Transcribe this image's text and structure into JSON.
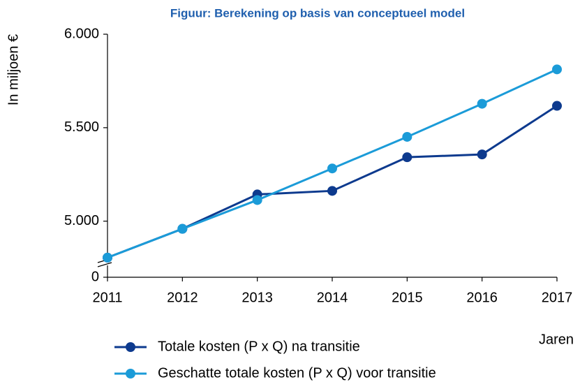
{
  "chart_data": {
    "type": "line",
    "title": "Figuur: Berekening op basis van conceptueel model",
    "y_label": "In miljoen €",
    "x_label": "Jaren",
    "categories": [
      "2011",
      "2012",
      "2013",
      "2014",
      "2015",
      "2016",
      "2017"
    ],
    "series": [
      {
        "name": "Totale kosten (P x Q) na transitie",
        "color": "#0d3a8e",
        "values": [
          4805,
          4959,
          5143,
          5162,
          5342,
          5357,
          5617
        ]
      },
      {
        "name": "Geschatte totale kosten (P x Q) voor transitie",
        "color": "#1b9bd8",
        "values": [
          4805,
          4959,
          5113,
          5282,
          5451,
          5628,
          5812
        ]
      }
    ],
    "ylim": [
      4700,
      6000
    ],
    "yticks": [
      0,
      {
        "value": 5000,
        "label": "5.000"
      },
      {
        "value": 5500,
        "label": "5.500"
      },
      {
        "value": 6000,
        "label": "6.000"
      }
    ],
    "axis_break": true,
    "grid": false
  }
}
